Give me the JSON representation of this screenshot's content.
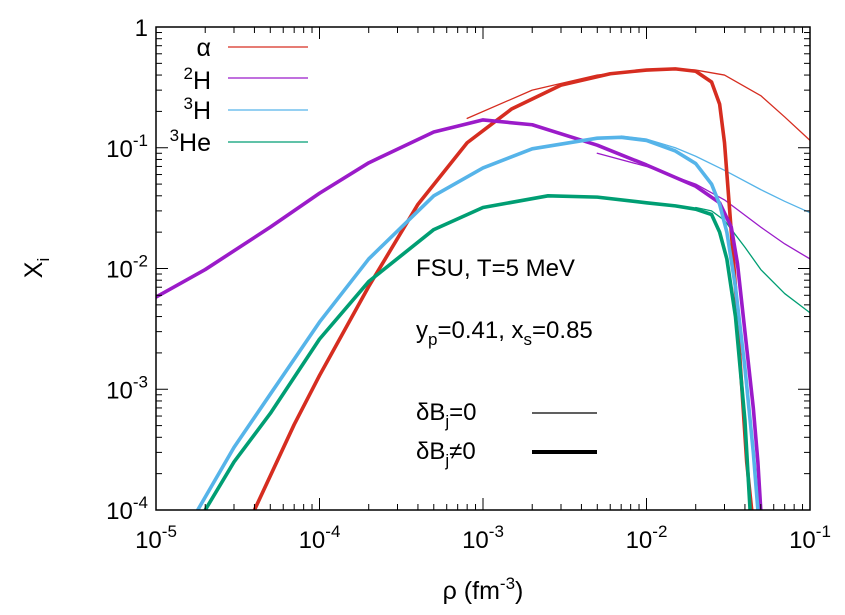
{
  "chart_data": {
    "type": "line",
    "title": "",
    "xlabel": {
      "base": "ρ (fm",
      "sup": "-3",
      "tail": ")"
    },
    "ylabel": {
      "base": "X",
      "sub": "i"
    },
    "xscale": "log",
    "yscale": "log",
    "xlim": [
      1e-05,
      0.1
    ],
    "ylim": [
      0.0001,
      1
    ],
    "grid": false,
    "x_ticks": [
      {
        "value": 1e-05,
        "base": "10",
        "exp": "-5"
      },
      {
        "value": 0.0001,
        "base": "10",
        "exp": "-4"
      },
      {
        "value": 0.001,
        "base": "10",
        "exp": "-3"
      },
      {
        "value": 0.01,
        "base": "10",
        "exp": "-2"
      },
      {
        "value": 0.1,
        "base": "10",
        "exp": "-1"
      }
    ],
    "y_ticks": [
      {
        "value": 0.0001,
        "base": "10",
        "exp": "-4"
      },
      {
        "value": 0.001,
        "base": "10",
        "exp": "-3"
      },
      {
        "value": 0.01,
        "base": "10",
        "exp": "-2"
      },
      {
        "value": 0.1,
        "base": "10",
        "exp": "-1"
      },
      {
        "value": 1,
        "base": "1",
        "exp": ""
      }
    ],
    "legend_position": "top-left",
    "species": [
      {
        "name": "alpha",
        "label_sup": "",
        "label_main": "α",
        "color": "#d62d20"
      },
      {
        "name": "2H",
        "label_sup": "2",
        "label_main": "H",
        "color": "#9b1bc9"
      },
      {
        "name": "3H",
        "label_sup": "3",
        "label_main": "H",
        "color": "#56b4e9"
      },
      {
        "name": "3He",
        "label_sup": "3",
        "label_main": "He",
        "color": "#009e73"
      }
    ],
    "line_styles": [
      {
        "name": "dB0",
        "label": {
          "pre": "δB",
          "sub": "j",
          "post": "=0"
        },
        "width": "thin"
      },
      {
        "name": "dBne",
        "label": {
          "pre": "δB",
          "sub": "j",
          "post": "≠0"
        },
        "width": "thick"
      }
    ],
    "annotations": {
      "model": "FSU, T=5 MeV",
      "params": {
        "p1": "y",
        "s1": "p",
        "v1": "=0.41, x",
        "s2": "s",
        "v2": "=0.85"
      }
    },
    "series": [
      {
        "species": "alpha",
        "style": "dB0",
        "x": [
          0.0008,
          0.002,
          0.005,
          0.01,
          0.015,
          0.02,
          0.03,
          0.05,
          0.07,
          0.1
        ],
        "y": [
          0.175,
          0.3,
          0.4,
          0.44,
          0.45,
          0.44,
          0.4,
          0.27,
          0.18,
          0.115
        ]
      },
      {
        "species": "alpha",
        "style": "dBne",
        "x": [
          4e-05,
          7e-05,
          0.0001,
          0.0002,
          0.0004,
          0.0008,
          0.0015,
          0.003,
          0.006,
          0.01,
          0.015,
          0.02,
          0.025,
          0.028,
          0.03,
          0.032,
          0.035,
          0.038,
          0.041,
          0.044
        ],
        "y": [
          0.0001,
          0.00051,
          0.0013,
          0.0071,
          0.034,
          0.11,
          0.21,
          0.33,
          0.41,
          0.44,
          0.45,
          0.43,
          0.35,
          0.23,
          0.11,
          0.035,
          0.007,
          0.0012,
          0.00025,
          0.0001
        ]
      },
      {
        "species": "2H",
        "style": "dB0",
        "x": [
          0.005,
          0.01,
          0.02,
          0.03,
          0.05,
          0.07,
          0.1
        ],
        "y": [
          0.09,
          0.07,
          0.05,
          0.037,
          0.022,
          0.016,
          0.012
        ]
      },
      {
        "species": "2H",
        "style": "dBne",
        "x": [
          1e-05,
          2e-05,
          5e-05,
          0.0001,
          0.0002,
          0.0005,
          0.001,
          0.002,
          0.005,
          0.01,
          0.02,
          0.028,
          0.033,
          0.036,
          0.04,
          0.045,
          0.048,
          0.05
        ],
        "y": [
          0.0058,
          0.0098,
          0.022,
          0.042,
          0.075,
          0.135,
          0.17,
          0.155,
          0.105,
          0.072,
          0.048,
          0.035,
          0.022,
          0.011,
          0.003,
          0.0007,
          0.00025,
          0.0001
        ]
      },
      {
        "species": "3H",
        "style": "dB0",
        "x": [
          0.007,
          0.01,
          0.015,
          0.02,
          0.03,
          0.05,
          0.07,
          0.1
        ],
        "y": [
          0.125,
          0.118,
          0.1,
          0.085,
          0.065,
          0.045,
          0.036,
          0.029
        ]
      },
      {
        "species": "3H",
        "style": "dBne",
        "x": [
          1.8e-05,
          3e-05,
          5e-05,
          0.0001,
          0.0002,
          0.0005,
          0.001,
          0.002,
          0.005,
          0.007,
          0.01,
          0.015,
          0.02,
          0.025,
          0.028,
          0.031,
          0.035,
          0.04,
          0.045,
          0.048
        ],
        "y": [
          0.0001,
          0.00033,
          0.00091,
          0.0036,
          0.012,
          0.04,
          0.068,
          0.098,
          0.12,
          0.122,
          0.115,
          0.094,
          0.074,
          0.05,
          0.034,
          0.02,
          0.007,
          0.0015,
          0.0003,
          0.0001
        ]
      },
      {
        "species": "3He",
        "style": "dB0",
        "x": [
          0.02,
          0.025,
          0.03,
          0.04,
          0.05,
          0.07,
          0.1
        ],
        "y": [
          0.032,
          0.03,
          0.025,
          0.015,
          0.0098,
          0.0062,
          0.0043
        ]
      },
      {
        "species": "3He",
        "style": "dBne",
        "x": [
          2e-05,
          3e-05,
          5e-05,
          0.0001,
          0.0002,
          0.0005,
          0.001,
          0.0025,
          0.005,
          0.01,
          0.015,
          0.02,
          0.025,
          0.028,
          0.031,
          0.035,
          0.04,
          0.043
        ],
        "y": [
          0.0001,
          0.00025,
          0.00063,
          0.0026,
          0.0078,
          0.021,
          0.032,
          0.04,
          0.039,
          0.035,
          0.033,
          0.031,
          0.028,
          0.02,
          0.012,
          0.004,
          0.00055,
          0.0001
        ]
      }
    ]
  }
}
